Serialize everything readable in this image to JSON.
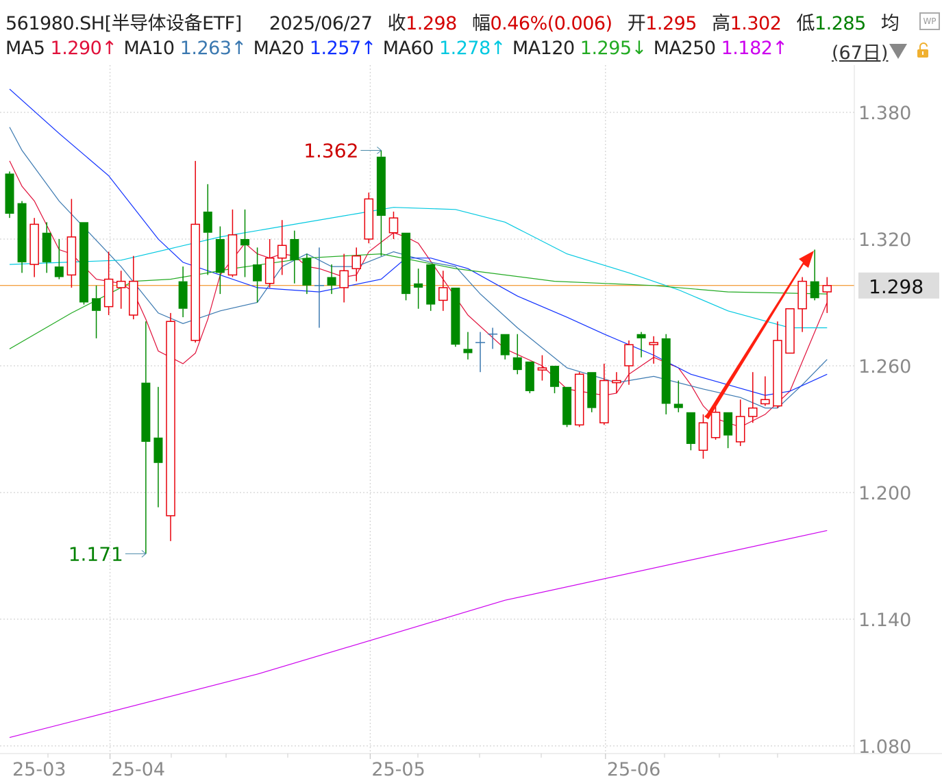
{
  "header": {
    "code": "561980.SH[半导体设备ETF]",
    "date": "2025/06/27",
    "close_label": "收",
    "close": "1.298",
    "change_label": "幅",
    "change": "0.46%(0.006)",
    "open_label": "开",
    "open": "1.295",
    "high_label": "高",
    "high": "1.302",
    "low_label": "低",
    "low": "1.285",
    "avg_label": "均",
    "wp_icon": "WP"
  },
  "ma_legend": [
    {
      "name": "MA5",
      "value": "1.290",
      "dir": "↑",
      "color": "#e0103a"
    },
    {
      "name": "MA10",
      "value": "1.263",
      "dir": "↑",
      "color": "#3a78b0"
    },
    {
      "name": "MA20",
      "value": "1.257",
      "dir": "↑",
      "color": "#1030ff"
    },
    {
      "name": "MA60",
      "value": "1.278",
      "dir": "↑",
      "color": "#00c8e0"
    },
    {
      "name": "MA120",
      "value": "1.295",
      "dir": "↓",
      "color": "#22aa22"
    },
    {
      "name": "MA250",
      "value": "1.182",
      "dir": "↑",
      "color": "#cc00ee"
    }
  ],
  "period_label": "(67日)",
  "colors": {
    "up": "#e8000b",
    "down": "#008a00",
    "flat": "#3a78b0",
    "last_price_line": "#f08000"
  },
  "chart_data": {
    "type": "candlestick",
    "ylim": [
      1.075,
      1.395
    ],
    "yticks": [
      "1.380",
      "1.320",
      "1.260",
      "1.200",
      "1.140",
      "1.080"
    ],
    "xtick_labels": [
      {
        "label": "25-03",
        "index": -2
      },
      {
        "label": "25-04",
        "index": 8
      },
      {
        "label": "25-05",
        "index": 29
      },
      {
        "label": "25-06",
        "index": 48
      }
    ],
    "last_price": "1.298",
    "annotations": [
      {
        "text": "1.362",
        "index": 30,
        "value": 1.362,
        "color": "#cc0000"
      },
      {
        "text": "1.171",
        "index": 11,
        "value": 1.171,
        "color": "#008000"
      }
    ],
    "ohlc_fields": [
      "open",
      "high",
      "low",
      "close"
    ],
    "candles": [
      [
        1.351,
        1.352,
        1.33,
        1.332
      ],
      [
        1.337,
        1.338,
        1.304,
        1.309
      ],
      [
        1.308,
        1.33,
        1.302,
        1.327
      ],
      [
        1.323,
        1.328,
        1.304,
        1.309
      ],
      [
        1.307,
        1.32,
        1.301,
        1.302
      ],
      [
        1.303,
        1.339,
        1.297,
        1.321
      ],
      [
        1.328,
        1.328,
        1.289,
        1.29
      ],
      [
        1.292,
        1.298,
        1.273,
        1.286
      ],
      [
        1.288,
        1.314,
        1.284,
        1.301
      ],
      [
        1.297,
        1.305,
        1.287,
        1.3
      ],
      [
        1.284,
        1.312,
        1.282,
        1.3
      ],
      [
        1.252,
        1.281,
        1.171,
        1.224
      ],
      [
        1.226,
        1.25,
        1.193,
        1.214
      ],
      [
        1.189,
        1.285,
        1.177,
        1.281
      ],
      [
        1.3,
        1.307,
        1.283,
        1.287
      ],
      [
        1.272,
        1.357,
        1.271,
        1.327
      ],
      [
        1.333,
        1.346,
        1.303,
        1.323
      ],
      [
        1.32,
        1.326,
        1.294,
        1.304
      ],
      [
        1.303,
        1.334,
        1.302,
        1.322
      ],
      [
        1.32,
        1.334,
        1.302,
        1.317
      ],
      [
        1.308,
        1.316,
        1.29,
        1.3
      ],
      [
        1.299,
        1.32,
        1.297,
        1.311
      ],
      [
        1.311,
        1.329,
        1.303,
        1.317
      ],
      [
        1.32,
        1.324,
        1.299,
        1.31
      ],
      [
        1.311,
        1.313,
        1.294,
        1.298
      ],
      [
        1.298,
        1.316,
        1.278,
        1.298
      ],
      [
        1.302,
        1.308,
        1.294,
        1.298
      ],
      [
        1.297,
        1.313,
        1.29,
        1.305
      ],
      [
        1.306,
        1.316,
        1.3,
        1.312
      ],
      [
        1.32,
        1.342,
        1.318,
        1.339
      ],
      [
        1.359,
        1.362,
        1.312,
        1.331
      ],
      [
        1.323,
        1.333,
        1.32,
        1.33
      ],
      [
        1.323,
        1.323,
        1.291,
        1.294
      ],
      [
        1.299,
        1.306,
        1.287,
        1.297
      ],
      [
        1.308,
        1.308,
        1.286,
        1.289
      ],
      [
        1.291,
        1.305,
        1.286,
        1.297
      ],
      [
        1.297,
        1.297,
        1.269,
        1.27
      ],
      [
        1.268,
        1.276,
        1.263,
        1.266
      ],
      [
        1.271,
        1.276,
        1.257,
        1.271
      ],
      [
        1.275,
        1.278,
        1.268,
        1.275
      ],
      [
        1.275,
        1.275,
        1.263,
        1.265
      ],
      [
        1.264,
        1.275,
        1.256,
        1.258
      ],
      [
        1.262,
        1.262,
        1.247,
        1.248
      ],
      [
        1.258,
        1.265,
        1.253,
        1.259
      ],
      [
        1.26,
        1.26,
        1.247,
        1.25
      ],
      [
        1.25,
        1.25,
        1.231,
        1.232
      ],
      [
        1.232,
        1.257,
        1.231,
        1.256
      ],
      [
        1.257,
        1.257,
        1.238,
        1.24
      ],
      [
        1.233,
        1.261,
        1.232,
        1.253
      ],
      [
        1.252,
        1.257,
        1.247,
        1.253
      ],
      [
        1.26,
        1.272,
        1.251,
        1.27
      ],
      [
        1.275,
        1.276,
        1.264,
        1.273
      ],
      [
        1.27,
        1.274,
        1.261,
        1.271
      ],
      [
        1.273,
        1.275,
        1.237,
        1.242
      ],
      [
        1.242,
        1.253,
        1.238,
        1.24
      ],
      [
        1.238,
        1.238,
        1.22,
        1.223
      ],
      [
        1.22,
        1.237,
        1.216,
        1.233
      ],
      [
        1.226,
        1.242,
        1.225,
        1.238
      ],
      [
        1.238,
        1.238,
        1.221,
        1.227
      ],
      [
        1.224,
        1.244,
        1.222,
        1.236
      ],
      [
        1.236,
        1.257,
        1.233,
        1.24
      ],
      [
        1.242,
        1.255,
        1.241,
        1.244
      ],
      [
        1.241,
        1.281,
        1.24,
        1.272
      ],
      [
        1.266,
        1.287,
        1.266,
        1.287
      ],
      [
        1.287,
        1.302,
        1.276,
        1.3
      ],
      [
        1.3,
        1.315,
        1.291,
        1.292
      ],
      [
        1.295,
        1.302,
        1.285,
        1.298
      ]
    ],
    "ma_series": [
      {
        "name": "MA5",
        "color": "#e0103a",
        "points": [
          [
            0,
            1.357
          ],
          [
            1,
            1.345
          ],
          [
            2,
            1.338
          ],
          [
            4,
            1.315
          ],
          [
            5,
            1.313
          ],
          [
            7,
            1.301
          ],
          [
            9,
            1.299
          ],
          [
            10,
            1.295
          ],
          [
            11,
            1.282
          ],
          [
            12,
            1.267
          ],
          [
            13,
            1.264
          ],
          [
            14,
            1.261
          ],
          [
            15,
            1.266
          ],
          [
            16,
            1.282
          ],
          [
            17,
            1.303
          ],
          [
            19,
            1.318
          ],
          [
            20,
            1.313
          ],
          [
            21,
            1.311
          ],
          [
            22,
            1.313
          ],
          [
            23,
            1.312
          ],
          [
            24,
            1.307
          ],
          [
            25,
            1.306
          ],
          [
            27,
            1.302
          ],
          [
            28,
            1.303
          ],
          [
            29,
            1.314
          ],
          [
            31,
            1.323
          ],
          [
            32,
            1.321
          ],
          [
            33,
            1.318
          ],
          [
            35,
            1.301
          ],
          [
            37,
            1.284
          ],
          [
            40,
            1.268
          ],
          [
            43,
            1.26
          ],
          [
            45,
            1.249
          ],
          [
            46,
            1.248
          ],
          [
            48,
            1.246
          ],
          [
            49,
            1.247
          ],
          [
            50,
            1.256
          ],
          [
            52,
            1.264
          ],
          [
            54,
            1.259
          ],
          [
            55,
            1.251
          ],
          [
            56,
            1.241
          ],
          [
            57,
            1.235
          ],
          [
            59,
            1.231
          ],
          [
            61,
            1.237
          ],
          [
            63,
            1.248
          ],
          [
            66,
            1.29
          ]
        ]
      },
      {
        "name": "MA10",
        "color": "#3a78b0",
        "points": [
          [
            0,
            1.373
          ],
          [
            1,
            1.362
          ],
          [
            4,
            1.338
          ],
          [
            9,
            1.307
          ],
          [
            12,
            1.285
          ],
          [
            14,
            1.28
          ],
          [
            17,
            1.286
          ],
          [
            20,
            1.29
          ],
          [
            22,
            1.307
          ],
          [
            24,
            1.313
          ],
          [
            26,
            1.307
          ],
          [
            28,
            1.307
          ],
          [
            31,
            1.314
          ],
          [
            34,
            1.309
          ],
          [
            36,
            1.307
          ],
          [
            38,
            1.294
          ],
          [
            41,
            1.278
          ],
          [
            45,
            1.259
          ],
          [
            49,
            1.252
          ],
          [
            52,
            1.255
          ],
          [
            56,
            1.249
          ],
          [
            59,
            1.245
          ],
          [
            61,
            1.24
          ],
          [
            62,
            1.24
          ],
          [
            64,
            1.251
          ],
          [
            66,
            1.263
          ]
        ]
      },
      {
        "name": "MA20",
        "color": "#1030ff",
        "points": [
          [
            0,
            1.391
          ],
          [
            4,
            1.37
          ],
          [
            8,
            1.35
          ],
          [
            12,
            1.32
          ],
          [
            14,
            1.309
          ],
          [
            17,
            1.303
          ],
          [
            20,
            1.297
          ],
          [
            25,
            1.295
          ],
          [
            30,
            1.301
          ],
          [
            32,
            1.311
          ],
          [
            34,
            1.311
          ],
          [
            37,
            1.306
          ],
          [
            41,
            1.293
          ],
          [
            45,
            1.283
          ],
          [
            48,
            1.275
          ],
          [
            52,
            1.265
          ],
          [
            55,
            1.256
          ],
          [
            58,
            1.251
          ],
          [
            61,
            1.246
          ],
          [
            63,
            1.248
          ],
          [
            66,
            1.256
          ]
        ]
      },
      {
        "name": "MA60",
        "color": "#00c8e0",
        "points": [
          [
            0,
            1.308
          ],
          [
            9,
            1.31
          ],
          [
            17,
            1.321
          ],
          [
            23,
            1.327
          ],
          [
            28,
            1.332
          ],
          [
            31,
            1.335
          ],
          [
            36,
            1.334
          ],
          [
            40,
            1.328
          ],
          [
            45,
            1.313
          ],
          [
            50,
            1.304
          ],
          [
            54,
            1.296
          ],
          [
            58,
            1.286
          ],
          [
            63,
            1.278
          ],
          [
            66,
            1.278
          ]
        ]
      },
      {
        "name": "MA120",
        "color": "#22aa22",
        "points": [
          [
            0,
            1.268
          ],
          [
            5,
            1.285
          ],
          [
            10,
            1.3
          ],
          [
            13,
            1.301
          ],
          [
            18,
            1.306
          ],
          [
            24,
            1.311
          ],
          [
            30,
            1.313
          ],
          [
            36,
            1.306
          ],
          [
            44,
            1.3
          ],
          [
            52,
            1.298
          ],
          [
            58,
            1.295
          ],
          [
            66,
            1.294
          ]
        ]
      },
      {
        "name": "MA250",
        "color": "#cc00ee",
        "points": [
          [
            0,
            1.084
          ],
          [
            20,
            1.114
          ],
          [
            40,
            1.149
          ],
          [
            66,
            1.182
          ]
        ]
      }
    ]
  }
}
